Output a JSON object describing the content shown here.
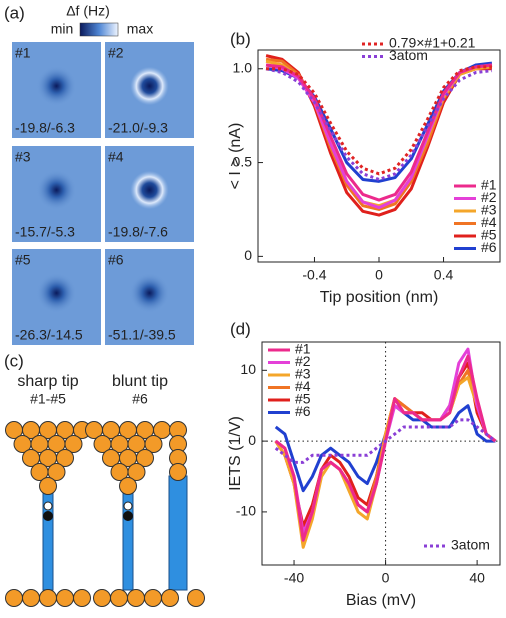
{
  "panel_a": {
    "label": "(a)",
    "colorbar": {
      "title": "Δf (Hz)",
      "min": "min",
      "max": "max"
    },
    "tiles": [
      {
        "id": "#1",
        "values": "-19.8/-6.3"
      },
      {
        "id": "#2",
        "values": "-21.0/-9.3"
      },
      {
        "id": "#3",
        "values": "-15.7/-5.3"
      },
      {
        "id": "#4",
        "values": "-19.8/-7.6"
      },
      {
        "id": "#5",
        "values": "-26.3/-14.5"
      },
      {
        "id": "#6",
        "values": "-51.1/-39.5"
      }
    ]
  },
  "panel_c": {
    "label": "(c)",
    "tips": [
      {
        "name": "sharp tip",
        "ids": "#1-#5"
      },
      {
        "name": "blunt tip",
        "ids": "#6"
      }
    ]
  },
  "chart_data": [
    {
      "type": "line",
      "panel_label": "(b)",
      "x_label": "Tip position (nm)",
      "y_label": "< I > (nA)",
      "x": [
        -0.7,
        -0.6,
        -0.5,
        -0.4,
        -0.3,
        -0.2,
        -0.1,
        0,
        0.1,
        0.2,
        0.3,
        0.4,
        0.5,
        0.6,
        0.7
      ],
      "xlim": [
        -0.75,
        0.75
      ],
      "xticks": [
        -0.4,
        0,
        0.4
      ],
      "ylim": [
        -0.03,
        1.1
      ],
      "yticks": [
        0,
        0.5,
        {
          "value": 1,
          "label": "1.0"
        }
      ],
      "series": [
        {
          "name": "0.79×#1+0.21",
          "color": "#e02424",
          "style": "dotted",
          "values": [
            1.0,
            1.0,
            0.97,
            0.87,
            0.71,
            0.56,
            0.47,
            0.44,
            0.47,
            0.57,
            0.73,
            0.9,
            0.99,
            1.01,
            1.01
          ]
        },
        {
          "name": "3atom",
          "color": "#8a3fd6",
          "style": "dotted",
          "values": [
            1.0,
            0.98,
            0.93,
            0.82,
            0.67,
            0.53,
            0.44,
            0.41,
            0.44,
            0.54,
            0.69,
            0.84,
            0.94,
            0.98,
            0.99
          ]
        },
        {
          "name": "#1",
          "color": "#ec2a8c",
          "style": "solid",
          "values": [
            1.02,
            1.01,
            0.96,
            0.84,
            0.64,
            0.44,
            0.33,
            0.3,
            0.33,
            0.45,
            0.66,
            0.87,
            0.98,
            1.01,
            1.02
          ]
        },
        {
          "name": "#2",
          "color": "#e440d8",
          "style": "solid",
          "values": [
            1.02,
            1.0,
            0.95,
            0.82,
            0.6,
            0.4,
            0.29,
            0.26,
            0.3,
            0.42,
            0.64,
            0.86,
            0.98,
            1.01,
            1.02
          ]
        },
        {
          "name": "#3",
          "color": "#f4a62a",
          "style": "solid",
          "values": [
            1.04,
            1.02,
            0.96,
            0.82,
            0.6,
            0.4,
            0.29,
            0.27,
            0.3,
            0.42,
            0.63,
            0.85,
            0.97,
            1.0,
            1.01
          ]
        },
        {
          "name": "#4",
          "color": "#f07424",
          "style": "solid",
          "values": [
            1.05,
            1.04,
            0.97,
            0.82,
            0.58,
            0.38,
            0.27,
            0.25,
            0.28,
            0.4,
            0.6,
            0.84,
            0.97,
            1.0,
            1.02
          ]
        },
        {
          "name": "#5",
          "color": "#e0201c",
          "style": "solid",
          "values": [
            1.07,
            1.05,
            0.98,
            0.8,
            0.55,
            0.34,
            0.24,
            0.22,
            0.25,
            0.36,
            0.58,
            0.82,
            0.97,
            1.0,
            1.0
          ]
        },
        {
          "name": "#6",
          "color": "#2040d0",
          "style": "solid",
          "values": [
            1.0,
            0.99,
            0.95,
            0.85,
            0.68,
            0.5,
            0.41,
            0.4,
            0.42,
            0.52,
            0.7,
            0.88,
            0.98,
            1.02,
            1.03
          ]
        }
      ]
    },
    {
      "type": "line",
      "panel_label": "(d)",
      "x_label": "Bias (mV)",
      "y_label": "IETS (1/V)",
      "zero_lines": true,
      "x": [
        -48,
        -44,
        -40,
        -36,
        -32,
        -28,
        -24,
        -20,
        -16,
        -12,
        -8,
        -4,
        0,
        4,
        8,
        12,
        16,
        20,
        24,
        28,
        32,
        36,
        40,
        44,
        48
      ],
      "xlim": [
        -54,
        50
      ],
      "xticks": [
        -40,
        0,
        40
      ],
      "ylim": [
        -17.5,
        14
      ],
      "yticks": [
        -10,
        0,
        10
      ],
      "series": [
        {
          "name": "#1",
          "color": "#ec2a8c",
          "style": "solid",
          "values": [
            0,
            -1,
            -5,
            -14,
            -10,
            -4,
            -3,
            -4,
            -6,
            -9,
            -10,
            -6,
            0,
            6,
            4,
            4,
            3,
            3,
            3,
            4,
            9,
            12,
            6,
            1,
            0
          ]
        },
        {
          "name": "#2",
          "color": "#e440d8",
          "style": "solid",
          "values": [
            0,
            -1,
            -5,
            -13,
            -10,
            -4,
            -3,
            -4,
            -6,
            -9,
            -10,
            -6,
            0,
            5,
            4,
            4,
            3,
            3,
            3,
            5,
            11,
            13,
            5,
            1,
            0
          ]
        },
        {
          "name": "#3",
          "color": "#f4a62a",
          "style": "solid",
          "values": [
            0,
            -2,
            -6,
            -15,
            -11,
            -5,
            -3,
            -4,
            -7,
            -10,
            -11,
            -6,
            1,
            6,
            4,
            4,
            3,
            3,
            3,
            4,
            8,
            9,
            5,
            1,
            0
          ]
        },
        {
          "name": "#4",
          "color": "#f07424",
          "style": "solid",
          "values": [
            0,
            -2,
            -6,
            -14,
            -10,
            -4,
            -3,
            -4,
            -6,
            -9,
            -10,
            -5,
            1,
            6,
            5,
            4,
            3,
            3,
            3,
            4,
            8,
            10,
            5,
            1,
            0
          ]
        },
        {
          "name": "#5",
          "color": "#e0201c",
          "style": "solid",
          "values": [
            0,
            -2,
            -6,
            -12,
            -9,
            -4,
            -2,
            -3,
            -5,
            -8,
            -9,
            -5,
            1,
            6,
            5,
            4,
            4,
            3,
            3,
            5,
            9,
            11,
            4,
            1,
            0
          ]
        },
        {
          "name": "#6",
          "color": "#2040d0",
          "style": "solid",
          "values": [
            2,
            1,
            -3,
            -7,
            -5,
            -2,
            -1,
            -2,
            -3,
            -5,
            -6,
            -3,
            1,
            5,
            4,
            3,
            3,
            2,
            2,
            2,
            4,
            5,
            1,
            0,
            0
          ]
        },
        {
          "name": "3atom",
          "color": "#8a3fd6",
          "style": "dotted",
          "values": [
            -1,
            -2,
            -3,
            -3,
            -2,
            -2,
            -2,
            -2,
            -2,
            -2,
            -2,
            -1,
            0,
            1,
            2,
            2,
            2,
            2,
            2,
            2,
            3,
            3,
            2,
            1,
            0
          ]
        }
      ]
    }
  ]
}
